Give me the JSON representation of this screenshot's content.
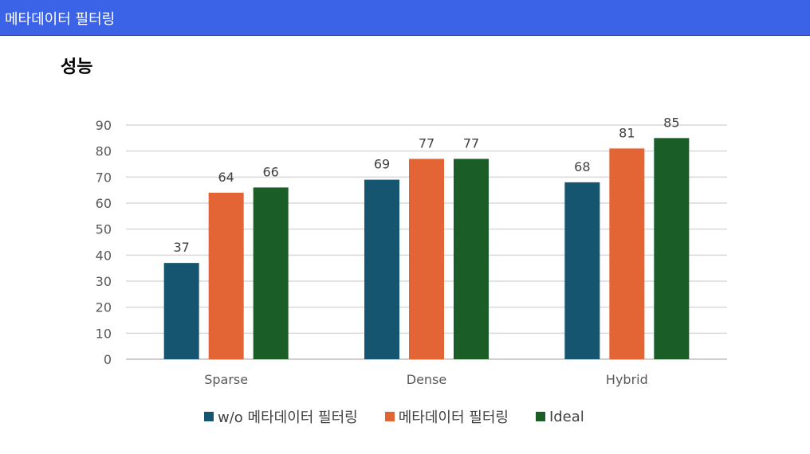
{
  "header": {
    "title": "메타데이터 필터링"
  },
  "page": {
    "section_title": "성능"
  },
  "colors": {
    "header_bg": "#3b63e8",
    "series": [
      "#15556f",
      "#e36434",
      "#1b5d27"
    ],
    "grid": "#d9d9d9",
    "axis_text": "#595959"
  },
  "chart_data": {
    "type": "bar",
    "title": "",
    "xlabel": "",
    "ylabel": "",
    "categories": [
      "Sparse",
      "Dense",
      "Hybrid"
    ],
    "series": [
      {
        "name": "w/o 메타데이터 필터링",
        "values": [
          37,
          69,
          68
        ]
      },
      {
        "name": "메타데이터 필터링",
        "values": [
          64,
          77,
          81
        ]
      },
      {
        "name": "Ideal",
        "values": [
          66,
          77,
          85
        ]
      }
    ],
    "ylim": [
      0,
      90
    ],
    "yticks": [
      0,
      10,
      20,
      30,
      40,
      50,
      60,
      70,
      80,
      90
    ],
    "grid": true,
    "data_labels": true,
    "legend_position": "bottom"
  }
}
